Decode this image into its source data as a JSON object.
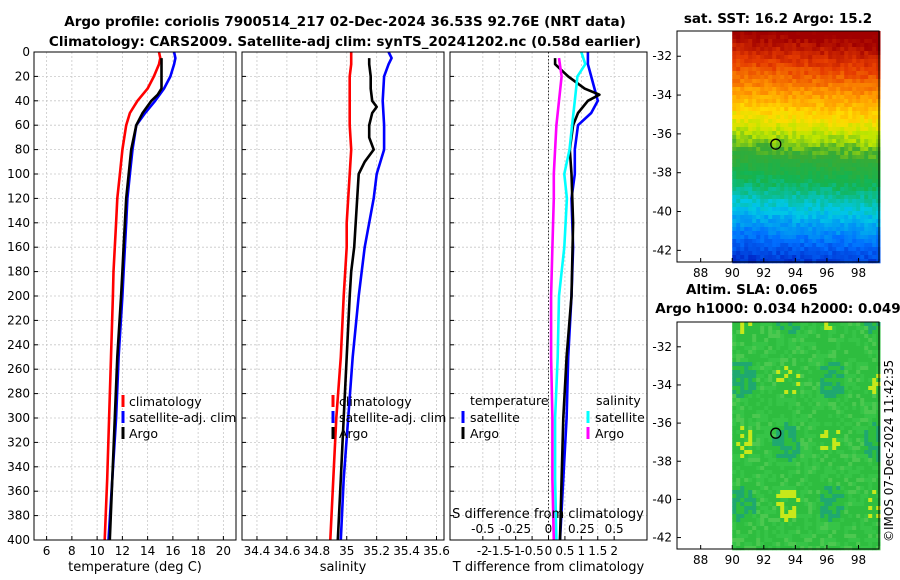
{
  "header": {
    "title_line1": "Argo profile: coriolis 7900514_217 02-Dec-2024 36.53S 92.76E (NRT data)",
    "title_line2": "Climatology: CARS2009. Satellite-adj clim: synTS_20241202.nc (0.58d earlier)"
  },
  "chart_data": [
    {
      "type": "line",
      "title": "",
      "xlabel": "temperature (deg C)",
      "ylabel": "",
      "xlim": [
        5,
        21
      ],
      "ylim": [
        400,
        0
      ],
      "xticks": [
        "6",
        "8",
        "10",
        "12",
        "14",
        "16",
        "18",
        "20"
      ],
      "xtick_values": [
        6,
        8,
        10,
        12,
        14,
        16,
        18,
        20
      ],
      "yticks": [
        "0",
        "20",
        "40",
        "60",
        "80",
        "100",
        "120",
        "140",
        "160",
        "180",
        "200",
        "220",
        "240",
        "260",
        "280",
        "300",
        "320",
        "340",
        "360",
        "380",
        "400"
      ],
      "grid": true,
      "legend_position": "lower-right",
      "legend": [
        "climatology",
        "satellite-adj. clim",
        "Argo"
      ],
      "series": [
        {
          "name": "climatology",
          "color": "#ff0000",
          "depth": [
            0,
            5,
            10,
            20,
            30,
            40,
            50,
            60,
            80,
            100,
            120,
            140,
            160,
            180,
            200,
            250,
            300,
            350,
            400
          ],
          "values": [
            14.9,
            15.0,
            14.9,
            14.5,
            14.0,
            13.2,
            12.6,
            12.3,
            12.0,
            11.8,
            11.6,
            11.5,
            11.4,
            11.3,
            11.25,
            11.1,
            10.95,
            10.8,
            10.6
          ]
        },
        {
          "name": "satellite-adj. clim",
          "color": "#0000ff",
          "depth": [
            0,
            5,
            10,
            20,
            30,
            40,
            50,
            60,
            80,
            100,
            120,
            140,
            160,
            180,
            200,
            250,
            300,
            350,
            400
          ],
          "values": [
            16.1,
            16.2,
            16.1,
            15.8,
            15.3,
            14.6,
            13.8,
            13.1,
            12.8,
            12.6,
            12.4,
            12.3,
            12.2,
            12.1,
            12.0,
            11.7,
            11.5,
            11.2,
            10.9
          ]
        },
        {
          "name": "Argo",
          "color": "#000000",
          "depth": [
            5,
            10,
            20,
            30,
            35,
            40,
            50,
            60,
            80,
            100,
            120,
            140,
            160,
            180,
            200,
            250,
            300,
            350,
            400
          ],
          "values": [
            15.1,
            15.1,
            15.1,
            15.1,
            14.8,
            14.3,
            13.6,
            13.1,
            12.7,
            12.5,
            12.3,
            12.2,
            12.1,
            12.0,
            11.9,
            11.6,
            11.4,
            11.2,
            11.0
          ]
        }
      ]
    },
    {
      "type": "line",
      "title": "",
      "xlabel": "salinity",
      "ylabel": "",
      "xlim": [
        34.3,
        35.65
      ],
      "ylim": [
        400,
        0
      ],
      "xticks": [
        "34.4",
        "34.6",
        "34.8",
        "35",
        "35.2",
        "35.4",
        "35.6"
      ],
      "xtick_values": [
        34.4,
        34.6,
        34.8,
        35.0,
        35.2,
        35.4,
        35.6
      ],
      "grid": true,
      "legend_position": "lower-right",
      "legend": [
        "climatology",
        "satellite-adj. clim",
        "Argo"
      ],
      "series": [
        {
          "name": "climatology",
          "color": "#ff0000",
          "depth": [
            0,
            10,
            20,
            40,
            60,
            80,
            100,
            120,
            140,
            160,
            180,
            200,
            250,
            300,
            350,
            400
          ],
          "values": [
            35.03,
            35.03,
            35.02,
            35.02,
            35.02,
            35.03,
            35.02,
            35.01,
            35.0,
            35.0,
            34.99,
            34.98,
            34.96,
            34.93,
            34.91,
            34.89
          ]
        },
        {
          "name": "satellite-adj. clim",
          "color": "#0000ff",
          "depth": [
            0,
            5,
            10,
            20,
            40,
            60,
            80,
            100,
            120,
            140,
            160,
            180,
            200,
            250,
            300,
            350,
            400
          ],
          "values": [
            35.28,
            35.3,
            35.28,
            35.25,
            35.24,
            35.25,
            35.25,
            35.2,
            35.18,
            35.15,
            35.12,
            35.1,
            35.08,
            35.04,
            35.01,
            34.98,
            34.96
          ]
        },
        {
          "name": "Argo",
          "color": "#000000",
          "depth": [
            5,
            10,
            20,
            30,
            40,
            45,
            50,
            60,
            70,
            80,
            90,
            100,
            120,
            140,
            160,
            180,
            200,
            250,
            300,
            350,
            400
          ],
          "values": [
            35.15,
            35.15,
            35.16,
            35.16,
            35.17,
            35.2,
            35.17,
            35.15,
            35.15,
            35.18,
            35.12,
            35.08,
            35.07,
            35.06,
            35.05,
            35.03,
            35.02,
            35.0,
            34.98,
            34.96,
            34.94
          ]
        }
      ]
    },
    {
      "type": "line",
      "title": "",
      "xlabel": "T difference from climatology",
      "x2label": "S difference from climatology",
      "ylabel": "",
      "xlim": [
        -3,
        3
      ],
      "ylim": [
        400,
        0
      ],
      "xticks": [
        "-2",
        "-1.5",
        "-1",
        "-0.5",
        "0",
        "0.5",
        "1",
        "1.5",
        "2"
      ],
      "xtick_values": [
        -2,
        -1.5,
        -1,
        -0.5,
        0,
        0.5,
        1,
        1.5,
        2
      ],
      "x2ticks": [
        "-0.5",
        "-0.25",
        "0",
        "0.25",
        "0.5"
      ],
      "x2tick_values": [
        -0.5,
        -0.25,
        0,
        0.25,
        0.5
      ],
      "grid": true,
      "legend_position": "lower-right",
      "legend_temperature_title": "temperature",
      "legend_salinity_title": "salinity",
      "legend": [
        "satellite",
        "Argo",
        "satellite",
        "Argo"
      ],
      "series": [
        {
          "name": "temperature satellite",
          "color": "#0000ff",
          "depth": [
            0,
            10,
            20,
            30,
            40,
            50,
            60,
            80,
            100,
            120,
            160,
            200,
            250,
            300,
            350,
            400
          ],
          "values": [
            1.2,
            1.2,
            1.3,
            1.4,
            1.5,
            1.3,
            0.9,
            0.8,
            0.8,
            0.7,
            0.75,
            0.7,
            0.6,
            0.55,
            0.45,
            0.35
          ]
        },
        {
          "name": "temperature Argo",
          "color": "#000000",
          "depth": [
            5,
            10,
            20,
            30,
            35,
            40,
            50,
            60,
            80,
            100,
            140,
            200,
            250,
            300,
            350,
            400
          ],
          "values": [
            0.2,
            0.2,
            0.6,
            1.1,
            1.55,
            1.2,
            0.9,
            0.75,
            0.65,
            0.7,
            0.75,
            0.7,
            0.55,
            0.45,
            0.4,
            0.35
          ]
        },
        {
          "name": "salinity satellite",
          "color": "#00ffff",
          "depth": [
            0,
            10,
            20,
            40,
            60,
            80,
            100,
            120,
            160,
            200,
            250,
            300,
            350,
            400
          ],
          "values": [
            0.25,
            0.28,
            0.22,
            0.2,
            0.18,
            0.16,
            0.12,
            0.14,
            0.12,
            0.08,
            0.07,
            0.05,
            0.05,
            0.06
          ]
        },
        {
          "name": "salinity Argo",
          "color": "#ff00ff",
          "depth": [
            5,
            20,
            40,
            60,
            80,
            100,
            120,
            160,
            200,
            250,
            300,
            350,
            400
          ],
          "values": [
            0.08,
            0.1,
            0.08,
            0.06,
            0.05,
            0.04,
            0.04,
            0.03,
            0.02,
            0.02,
            0.03,
            0.03,
            0.04
          ]
        }
      ]
    },
    {
      "type": "heatmap",
      "title": "sat. SST: 16.2 Argo: 15.2",
      "xticks": [
        "88",
        "90",
        "92",
        "94",
        "96",
        "98"
      ],
      "xtick_values": [
        88,
        90,
        92,
        94,
        96,
        98
      ],
      "yticks": [
        "-32",
        "-34",
        "-36",
        "-38",
        "-40",
        "-42"
      ],
      "ytick_values": [
        -32,
        -34,
        -36,
        -38,
        -40,
        -42
      ],
      "xlim": [
        86.5,
        99.3
      ],
      "ylim": [
        -42.6,
        -30.7
      ],
      "data_x_start": 90,
      "sat_sst": 16.2,
      "argo_sst": 15.2,
      "argo_position": {
        "lon": 92.76,
        "lat": -36.53
      }
    },
    {
      "type": "heatmap",
      "title_line1": "Altim. SLA: 0.065",
      "title_line2": "Argo h1000: 0.034 h2000: 0.049",
      "xticks": [
        "88",
        "90",
        "92",
        "94",
        "96",
        "98"
      ],
      "xtick_values": [
        88,
        90,
        92,
        94,
        96,
        98
      ],
      "yticks": [
        "-32",
        "-34",
        "-36",
        "-38",
        "-40",
        "-42"
      ],
      "ytick_values": [
        -32,
        -34,
        -36,
        -38,
        -40,
        -42
      ],
      "xlim": [
        86.5,
        99.3
      ],
      "ylim": [
        -42.6,
        -30.7
      ],
      "data_x_start": 90,
      "sla": 0.065,
      "argo_h1000": 0.034,
      "argo_h2000": 0.049,
      "argo_position": {
        "lon": 92.76,
        "lat": -36.53
      }
    }
  ],
  "footer": {
    "stamp": "©IMOS 07-Dec-2024 11:42:35"
  }
}
